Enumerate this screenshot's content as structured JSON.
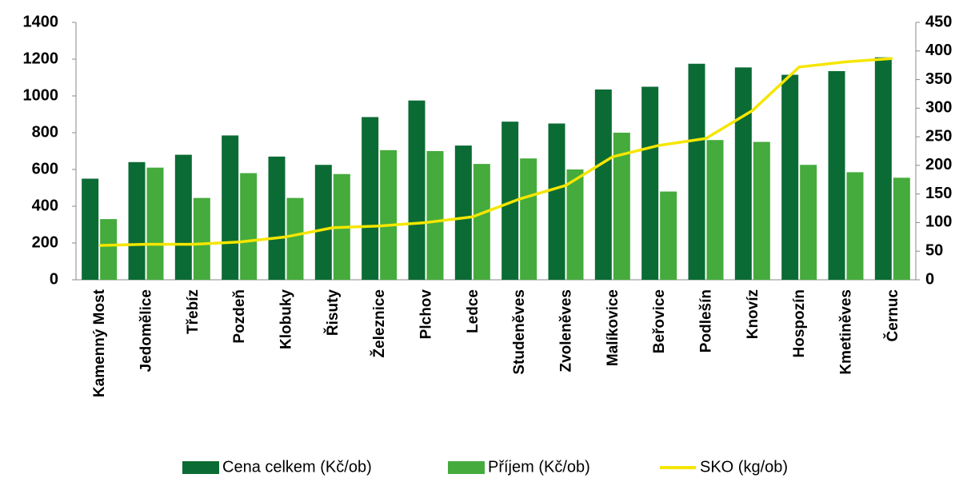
{
  "chart_data": {
    "type": "bar",
    "categories": [
      "Kamenný Most",
      "Jedomělice",
      "Třebíz",
      "Pozdeň",
      "Klobuky",
      "Řisuty",
      "Železnice",
      "Plchov",
      "Ledce",
      "Studeněves",
      "Zvoleněves",
      "Malíkovice",
      "Beřovice",
      "Podlešín",
      "Knovíz",
      "Hospozín",
      "Kmetiněves",
      "Černuc"
    ],
    "series": [
      {
        "name": "Cena celkem (Kč/ob)",
        "color": "#0b6b34",
        "values": [
          550,
          640,
          680,
          785,
          670,
          625,
          885,
          975,
          730,
          860,
          850,
          1035,
          1050,
          1175,
          1155,
          1115,
          1135,
          1210
        ]
      },
      {
        "name": "Příjem (Kč/ob)",
        "color": "#45ab3c",
        "values": [
          330,
          610,
          445,
          580,
          445,
          575,
          705,
          700,
          630,
          660,
          600,
          800,
          480,
          760,
          750,
          625,
          585,
          555
        ]
      },
      {
        "name": "SKO (kg/ob)",
        "color": "#f5e600",
        "type": "line",
        "axis": "y2",
        "values": [
          60,
          62,
          62,
          66,
          75,
          91,
          94,
          100,
          110,
          141,
          165,
          215,
          235,
          247,
          296,
          372,
          381,
          387
        ]
      }
    ],
    "ylim": [
      0,
      1400
    ],
    "yticks": [
      0,
      200,
      400,
      600,
      800,
      1000,
      1200,
      1400
    ],
    "y2lim": [
      0,
      450
    ],
    "y2ticks": [
      0,
      50,
      100,
      150,
      200,
      250,
      300,
      350,
      400,
      450
    ],
    "grid": false,
    "legend": "bottom"
  }
}
